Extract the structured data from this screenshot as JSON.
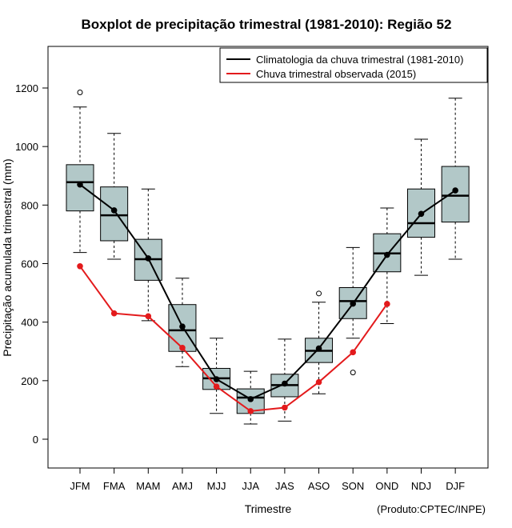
{
  "colors": {
    "box_fill": "#b2c8c8",
    "climatology": "#000000",
    "observed": "#e31a1c",
    "axis": "#000000"
  },
  "credit": "(Produto:CPTEC/INPE)",
  "chart_data": {
    "type": "boxplot",
    "title": "Boxplot de precipitação trimestral (1981-2010): Região 52",
    "xlabel": "Trimestre",
    "ylabel": "Precipitação acumulada trimestral (mm)",
    "ylim": [
      -100,
      1340
    ],
    "yticks": [
      0,
      200,
      400,
      600,
      800,
      1000,
      1200
    ],
    "ytick_labels": [
      "0",
      "200",
      "400",
      "600",
      "800",
      "1000",
      "1200"
    ],
    "legend_position": "top-right",
    "categories": [
      "JFM",
      "FMA",
      "MAM",
      "AMJ",
      "MJJ",
      "JJA",
      "JAS",
      "ASO",
      "SON",
      "OND",
      "NDJ",
      "DJF"
    ],
    "boxes": [
      {
        "whisker_low": 638,
        "q1": 780,
        "median": 878,
        "q3": 938,
        "whisker_high": 1135,
        "outliers": [
          1185
        ]
      },
      {
        "whisker_low": 615,
        "q1": 678,
        "median": 765,
        "q3": 862,
        "whisker_high": 1045,
        "outliers": []
      },
      {
        "whisker_low": 405,
        "q1": 543,
        "median": 615,
        "q3": 683,
        "whisker_high": 855,
        "outliers": []
      },
      {
        "whisker_low": 248,
        "q1": 300,
        "median": 372,
        "q3": 460,
        "whisker_high": 550,
        "outliers": []
      },
      {
        "whisker_low": 88,
        "q1": 170,
        "median": 208,
        "q3": 242,
        "whisker_high": 345,
        "outliers": []
      },
      {
        "whisker_low": 52,
        "q1": 88,
        "median": 142,
        "q3": 172,
        "whisker_high": 232,
        "outliers": []
      },
      {
        "whisker_low": 62,
        "q1": 145,
        "median": 185,
        "q3": 222,
        "whisker_high": 342,
        "outliers": []
      },
      {
        "whisker_low": 155,
        "q1": 262,
        "median": 302,
        "q3": 345,
        "whisker_high": 468,
        "outliers": [
          498
        ]
      },
      {
        "whisker_low": 345,
        "q1": 412,
        "median": 472,
        "q3": 518,
        "whisker_high": 655,
        "outliers": [
          228
        ]
      },
      {
        "whisker_low": 395,
        "q1": 572,
        "median": 635,
        "q3": 702,
        "whisker_high": 790,
        "outliers": []
      },
      {
        "whisker_low": 560,
        "q1": 690,
        "median": 738,
        "q3": 855,
        "whisker_high": 1025,
        "outliers": []
      },
      {
        "whisker_low": 615,
        "q1": 742,
        "median": 832,
        "q3": 932,
        "whisker_high": 1165,
        "outliers": []
      }
    ],
    "series": [
      {
        "name": "Climatologia da chuva trimestral (1981-2010)",
        "color": "#000000",
        "values": [
          870,
          782,
          618,
          385,
          205,
          137,
          190,
          310,
          463,
          630,
          770,
          850
        ]
      },
      {
        "name": "Chuva trimestral observada (2015)",
        "color": "#e31a1c",
        "values": [
          591,
          430,
          420,
          312,
          180,
          96,
          108,
          195,
          297,
          462,
          null,
          null
        ]
      }
    ]
  }
}
